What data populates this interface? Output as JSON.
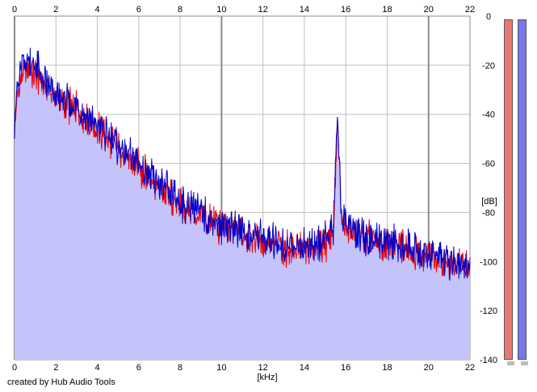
{
  "chart_data": {
    "type": "area",
    "xlabel": "[kHz]",
    "ylabel": "[dB]",
    "xlim": [
      0,
      22
    ],
    "ylim": [
      -140,
      0
    ],
    "x_ticks": [
      0,
      2,
      4,
      6,
      8,
      10,
      12,
      14,
      16,
      18,
      20,
      22
    ],
    "y_ticks": [
      0,
      -20,
      -40,
      -60,
      -80,
      -100,
      -120,
      -140
    ],
    "grid": true,
    "colors": {
      "fill": "#c4c4fb",
      "channel_a": "#ee0000",
      "channel_b": "#0000cc",
      "grid": "#bfbfbf"
    },
    "peak": {
      "x": 15.6,
      "y": -40
    },
    "series": [
      {
        "color": "#ee0000",
        "x": [
          0.0,
          0.1,
          0.3,
          0.6,
          1.0,
          1.5,
          2.0,
          2.5,
          3.0,
          3.5,
          4.0,
          4.5,
          5.0,
          5.5,
          6.0,
          6.5,
          7.0,
          7.5,
          8.0,
          8.5,
          9.0,
          9.5,
          10.0,
          11.0,
          12.0,
          13.0,
          14.0,
          15.0,
          15.4,
          15.6,
          15.8,
          16.0,
          17.0,
          18.0,
          19.0,
          20.0,
          21.0,
          22.0
        ],
        "values": [
          -45,
          -35,
          -25,
          -20,
          -23,
          -28,
          -33,
          -36,
          -39,
          -42,
          -46,
          -50,
          -54,
          -58,
          -61,
          -65,
          -70,
          -73,
          -77,
          -79,
          -81,
          -83,
          -86,
          -89,
          -92,
          -94,
          -95,
          -93,
          -88,
          -41,
          -82,
          -87,
          -91,
          -93,
          -95,
          -98,
          -101,
          -103
        ]
      },
      {
        "color": "#0000cc",
        "x": [
          0.0,
          0.1,
          0.3,
          0.6,
          1.0,
          1.5,
          2.0,
          2.5,
          3.0,
          3.5,
          4.0,
          4.5,
          5.0,
          5.5,
          6.0,
          6.5,
          7.0,
          7.5,
          8.0,
          8.5,
          9.0,
          9.5,
          10.0,
          11.0,
          12.0,
          13.0,
          14.0,
          15.0,
          15.4,
          15.6,
          15.8,
          16.0,
          17.0,
          18.0,
          19.0,
          20.0,
          21.0,
          22.0
        ],
        "values": [
          -42,
          -32,
          -22,
          -16,
          -21,
          -27,
          -32,
          -35,
          -38,
          -41,
          -45,
          -49,
          -53,
          -57,
          -60,
          -64,
          -69,
          -72,
          -76,
          -78,
          -80,
          -82,
          -85,
          -88,
          -91,
          -93,
          -94,
          -92,
          -87,
          -40,
          -81,
          -86,
          -90,
          -92,
          -94,
          -97,
          -100,
          -102
        ]
      }
    ]
  },
  "meters": [
    {
      "color": "#e87878"
    },
    {
      "color": "#7878e8"
    }
  ],
  "footer": "created by Hub Audio Tools"
}
